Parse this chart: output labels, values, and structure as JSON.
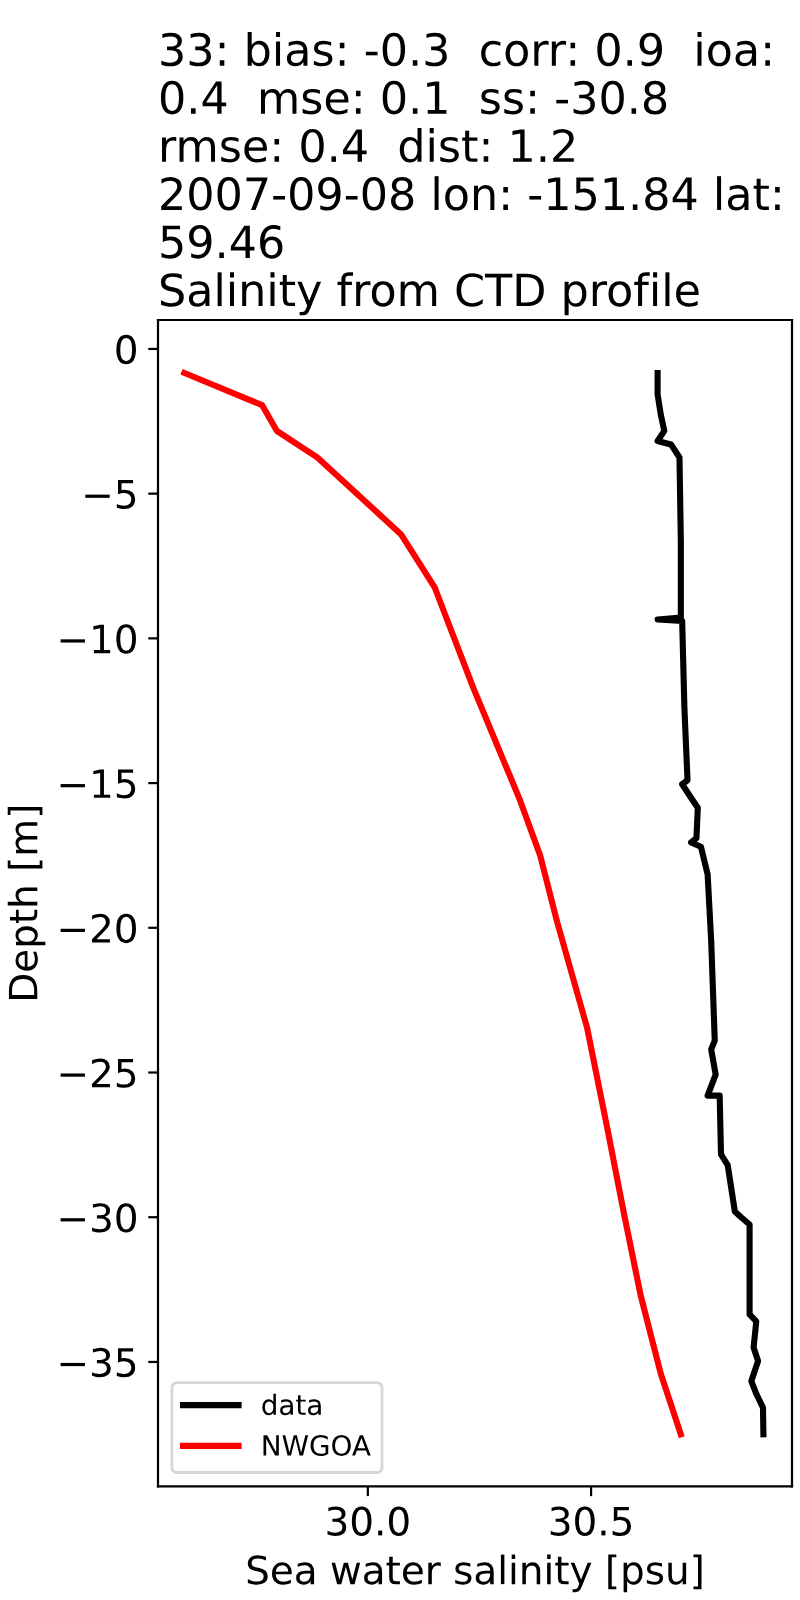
{
  "chart_data": {
    "type": "line",
    "title": "33: bias: -0.3  corr: 0.9  ioa:\n0.4  mse: 0.1  ss: -30.8\nrmse: 0.4  dist: 1.2\n2007-09-08 lon: -151.84 lat:\n59.46\nSalinity from CTD profile",
    "xlabel": "Sea water salinity [psu]",
    "ylabel": "Depth [m]",
    "xlim": [
      29.53,
      30.95
    ],
    "ylim": [
      -39.3,
      1.0
    ],
    "xticks": [
      {
        "value": 30,
        "label": "30.0"
      },
      {
        "value": 30.5,
        "label": "30.5"
      }
    ],
    "yticks": [
      0,
      -5,
      -10,
      -15,
      -20,
      -25,
      -30,
      -35
    ],
    "legend": "bottom left",
    "grid": false,
    "series": [
      {
        "name": "data",
        "color": "#000000",
        "x": [
          30.649,
          30.649,
          30.656,
          30.664,
          30.649,
          30.679,
          30.698,
          30.701,
          30.701,
          30.649,
          30.704,
          30.709,
          30.716,
          30.704,
          30.728,
          30.739,
          30.736,
          30.724,
          30.746,
          30.761,
          30.769,
          30.777,
          30.769,
          30.779,
          30.761,
          30.788,
          30.791,
          30.806,
          30.814,
          30.822,
          30.836,
          30.855,
          30.855,
          30.87,
          30.864,
          30.874,
          30.859,
          30.87,
          30.885,
          30.886
        ],
        "values": [
          -0.83,
          -1.57,
          -2.26,
          -2.83,
          -3.18,
          -3.3,
          -3.75,
          -6.63,
          -9.28,
          -9.35,
          -9.4,
          -12.4,
          -14.9,
          -15.04,
          -15.6,
          -15.85,
          -16.9,
          -17.05,
          -17.2,
          -18.15,
          -20.45,
          -23.9,
          -24.2,
          -25.07,
          -25.8,
          -25.8,
          -27.83,
          -28.2,
          -29.0,
          -29.8,
          -30.0,
          -30.25,
          -33.36,
          -33.6,
          -34.5,
          -34.97,
          -35.66,
          -36.1,
          -36.58,
          -37.5
        ]
      },
      {
        "name": "NWGOA",
        "color": "#ff0000",
        "x": [
          29.589,
          29.763,
          29.796,
          29.887,
          30.074,
          30.15,
          30.236,
          30.341,
          30.386,
          30.424,
          30.491,
          30.536,
          30.574,
          30.611,
          30.656,
          30.701
        ],
        "values": [
          -0.83,
          -1.94,
          -2.83,
          -3.75,
          -6.4,
          -8.25,
          -11.7,
          -15.6,
          -17.5,
          -19.8,
          -23.45,
          -26.9,
          -29.9,
          -32.7,
          -35.4,
          -37.5
        ]
      }
    ]
  }
}
